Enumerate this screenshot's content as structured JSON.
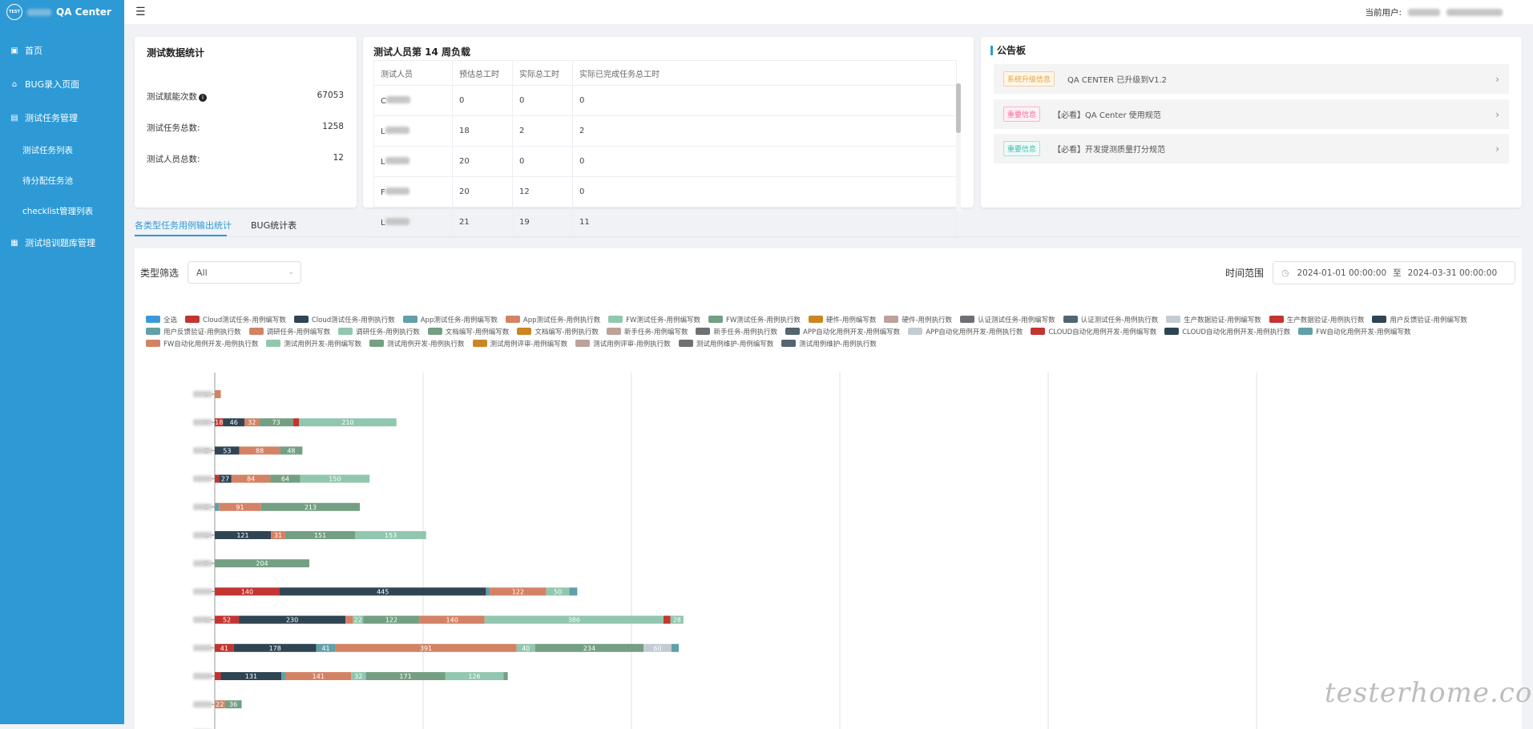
{
  "app": {
    "logo_text": "TEST",
    "title": "QA Center"
  },
  "sidebar": {
    "items": [
      {
        "label": "首页",
        "icon": "home-icon"
      },
      {
        "label": "BUG录入页面",
        "icon": "bug-icon"
      },
      {
        "label": "测试任务管理",
        "icon": "task-icon"
      },
      {
        "label": "测试任务列表"
      },
      {
        "label": "待分配任务池"
      },
      {
        "label": "checklist管理列表"
      },
      {
        "label": "测试培训题库管理",
        "icon": "book-icon"
      }
    ]
  },
  "header": {
    "current_user_label": "当前用户:",
    "menu_icon": "hamburger-icon"
  },
  "stats": {
    "title": "测试数据统计",
    "rows": [
      {
        "label": "测试赋能次数",
        "value": "67053"
      },
      {
        "label": "测试任务总数:",
        "value": "1258"
      },
      {
        "label": "测试人员总数:",
        "value": "12"
      }
    ]
  },
  "load": {
    "title": "测试人员第 14 周负载",
    "headers": [
      "测试人员",
      "预估总工时",
      "实际总工时",
      "实际已完成任务总工时"
    ],
    "rows": [
      [
        "C",
        "0",
        "0",
        "0"
      ],
      [
        "L",
        "18",
        "2",
        "2"
      ],
      [
        "L",
        "20",
        "0",
        "0"
      ],
      [
        "F",
        "20",
        "12",
        "0"
      ],
      [
        "L",
        "21",
        "19",
        "11"
      ]
    ]
  },
  "notice": {
    "title": "公告板",
    "items": [
      {
        "tag": "系统升级信息",
        "text": "QA CENTER 已升级到V1.2",
        "color": "#e6a23c"
      },
      {
        "tag": "重要信息",
        "text": "【必看】QA Center 使用规范",
        "color": "#f56c9b"
      },
      {
        "tag": "重要信息",
        "text": "【必看】开发提测质量打分规范",
        "color": "#3cbfae"
      }
    ]
  },
  "tabs": [
    {
      "label": "各类型任务用例输出统计",
      "active": true
    },
    {
      "label": "BUG统计表",
      "active": false
    }
  ],
  "filters": {
    "type_label": "类型筛选",
    "type_value": "All",
    "time_label": "时间范围",
    "date_start": "2024-01-01 00:00:00",
    "date_sep": "至",
    "date_end": "2024-03-31 00:00:00"
  },
  "chart_data": {
    "type": "bar",
    "orientation": "horizontal",
    "stacked": true,
    "legend_position": "top",
    "legend": [
      {
        "name": "全选",
        "color": "#3a9ad9"
      },
      {
        "name": "Cloud测试任务-用例编写数",
        "color": "#c23531"
      },
      {
        "name": "Cloud测试任务-用例执行数",
        "color": "#2f4554"
      },
      {
        "name": "App测试任务-用例编写数",
        "color": "#61a0a8"
      },
      {
        "name": "App测试任务-用例执行数",
        "color": "#d48265"
      },
      {
        "name": "FW测试任务-用例编写数",
        "color": "#91c7ae"
      },
      {
        "name": "FW测试任务-用例执行数",
        "color": "#749f83"
      },
      {
        "name": "硬件-用例编写数",
        "color": "#ca8622"
      },
      {
        "name": "硬件-用例执行数",
        "color": "#bda29a"
      },
      {
        "name": "认证测试任务-用例编写数",
        "color": "#6e7074"
      },
      {
        "name": "认证测试任务-用例执行数",
        "color": "#546570"
      },
      {
        "name": "生产数据验证-用例编写数",
        "color": "#c4ccd3"
      },
      {
        "name": "生产数据验证-用例执行数",
        "color": "#c23531"
      },
      {
        "name": "用户反馈验证-用例编写数",
        "color": "#2f4554"
      },
      {
        "name": "用户反馈验证-用例执行数",
        "color": "#61a0a8"
      },
      {
        "name": "调研任务-用例编写数",
        "color": "#d48265"
      },
      {
        "name": "调研任务-用例执行数",
        "color": "#91c7ae"
      },
      {
        "name": "文档编写-用例编写数",
        "color": "#749f83"
      },
      {
        "name": "文档编写-用例执行数",
        "color": "#ca8622"
      },
      {
        "name": "新手任务-用例编写数",
        "color": "#bda29a"
      },
      {
        "name": "新手任务-用例执行数",
        "color": "#6e7074"
      },
      {
        "name": "APP自动化用例开发-用例编写数",
        "color": "#546570"
      },
      {
        "name": "APP自动化用例开发-用例执行数",
        "color": "#c4ccd3"
      },
      {
        "name": "CLOUD自动化用例开发-用例编写数",
        "color": "#c23531"
      },
      {
        "name": "CLOUD自动化用例开发-用例执行数",
        "color": "#2f4554"
      },
      {
        "name": "FW自动化用例开发-用例编写数",
        "color": "#61a0a8"
      },
      {
        "name": "FW自动化用例开发-用例执行数",
        "color": "#d48265"
      },
      {
        "name": "测试用例开发-用例编写数",
        "color": "#91c7ae"
      },
      {
        "name": "测试用例开发-用例执行数",
        "color": "#749f83"
      },
      {
        "name": "测试用例评审-用例编写数",
        "color": "#ca8622"
      },
      {
        "name": "测试用例评审-用例执行数",
        "color": "#bda29a"
      },
      {
        "name": "测试用例维护-用例编写数",
        "color": "#6e7074"
      },
      {
        "name": "测试用例维护-用例执行数",
        "color": "#546570"
      }
    ],
    "categories": [
      "L",
      "W",
      "Z",
      "",
      "C",
      "L",
      "D",
      "",
      "L",
      "",
      "",
      "",
      ""
    ],
    "xlim": [
      0,
      600
    ],
    "grid": true,
    "rows": [
      [
        {
          "v": 13,
          "c": "#d48265"
        }
      ],
      [
        {
          "v": 18,
          "c": "#c23531"
        },
        {
          "v": 46,
          "c": "#2f4554"
        },
        {
          "v": 32,
          "c": "#d48265"
        },
        {
          "v": 73,
          "c": "#749f83"
        },
        {
          "v": 13,
          "c": "#c23531"
        },
        {
          "v": 210,
          "c": "#91c7ae"
        }
      ],
      [
        {
          "v": 53,
          "c": "#2f4554"
        },
        {
          "v": 88,
          "c": "#d48265"
        },
        {
          "v": 48,
          "c": "#749f83"
        }
      ],
      [
        {
          "v": 9,
          "c": "#c23531"
        },
        {
          "v": 27,
          "c": "#2f4554"
        },
        {
          "v": 84,
          "c": "#d48265"
        },
        {
          "v": 64,
          "c": "#749f83"
        },
        {
          "v": 150,
          "c": "#91c7ae"
        }
      ],
      [
        {
          "v": 9,
          "c": "#61a0a8"
        },
        {
          "v": 91,
          "c": "#d48265"
        },
        {
          "v": 213,
          "c": "#749f83"
        }
      ],
      [
        {
          "v": 121,
          "c": "#2f4554"
        },
        {
          "v": 31,
          "c": "#d48265"
        },
        {
          "v": 151,
          "c": "#749f83"
        },
        {
          "v": 153,
          "c": "#91c7ae"
        }
      ],
      [
        {
          "v": 204,
          "c": "#749f83"
        }
      ],
      [
        {
          "v": 140,
          "c": "#c23531"
        },
        {
          "v": 445,
          "c": "#2f4554"
        },
        {
          "v": 8,
          "c": "#61a0a8"
        },
        {
          "v": 122,
          "c": "#d48265"
        },
        {
          "v": 50,
          "c": "#91c7ae"
        },
        {
          "v": 17,
          "c": "#61a0a8"
        }
      ],
      [
        {
          "v": 52,
          "c": "#c23531"
        },
        {
          "v": 230,
          "c": "#2f4554"
        },
        {
          "v": 16,
          "c": "#d48265"
        },
        {
          "v": 22,
          "c": "#91c7ae"
        },
        {
          "v": 122,
          "c": "#749f83"
        },
        {
          "v": 140,
          "c": "#d48265"
        },
        {
          "v": 386,
          "c": "#91c7ae"
        },
        {
          "v": 15,
          "c": "#c23531"
        },
        {
          "v": 28,
          "c": "#91c7ae"
        }
      ],
      [
        {
          "v": 41,
          "c": "#c23531"
        },
        {
          "v": 178,
          "c": "#2f4554"
        },
        {
          "v": 41,
          "c": "#61a0a8"
        },
        {
          "v": 391,
          "c": "#d48265"
        },
        {
          "v": 40,
          "c": "#91c7ae"
        },
        {
          "v": 234,
          "c": "#749f83"
        },
        {
          "v": 60,
          "c": "#c4ccd3"
        },
        {
          "v": 16,
          "c": "#61a0a8"
        }
      ],
      [
        {
          "v": 13,
          "c": "#c23531"
        },
        {
          "v": 131,
          "c": "#2f4554"
        },
        {
          "v": 9,
          "c": "#61a0a8"
        },
        {
          "v": 141,
          "c": "#d48265"
        },
        {
          "v": 32,
          "c": "#91c7ae"
        },
        {
          "v": 171,
          "c": "#749f83"
        },
        {
          "v": 126,
          "c": "#91c7ae"
        },
        {
          "v": 9,
          "c": "#749f83"
        }
      ],
      [
        {
          "v": 22,
          "c": "#d48265"
        },
        {
          "v": 36,
          "c": "#749f83"
        }
      ],
      []
    ]
  },
  "watermark": "testerhome.com"
}
